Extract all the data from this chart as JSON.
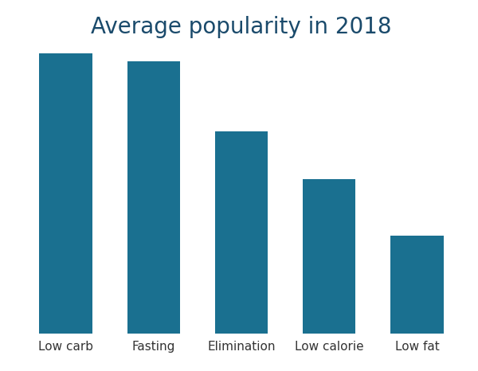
{
  "categories": [
    "Low carb",
    "Fasting",
    "Elimination",
    "Low calorie",
    "Low fat"
  ],
  "values": [
    100,
    97,
    72,
    55,
    35
  ],
  "bar_color": "#1a7090",
  "title": "Average popularity in 2018",
  "title_fontsize": 20,
  "title_color": "#1a4a6b",
  "tick_label_fontsize": 11,
  "tick_label_color": "#333333",
  "background_color": "#ffffff",
  "bar_width": 0.6,
  "ylim": [
    0,
    103
  ]
}
